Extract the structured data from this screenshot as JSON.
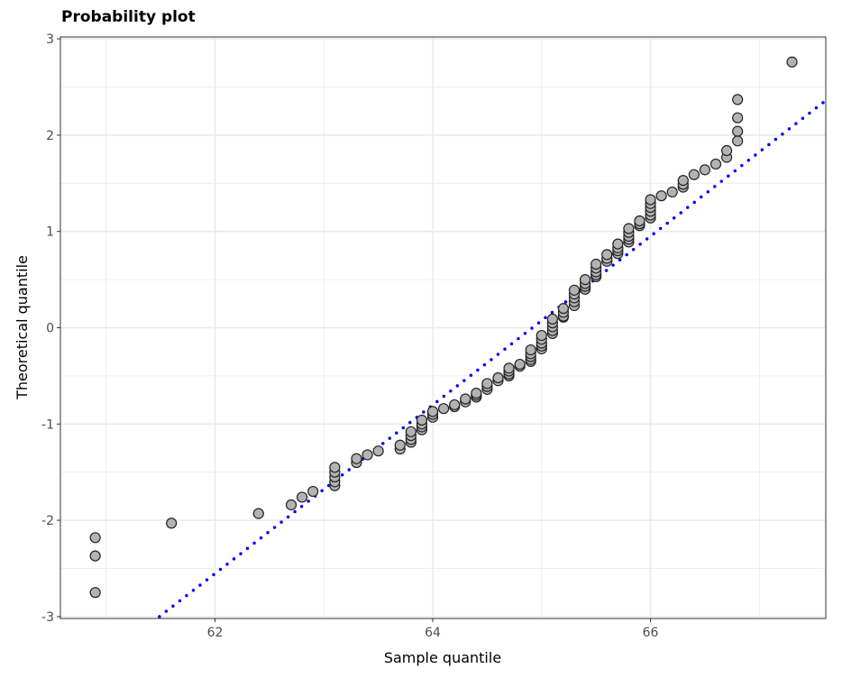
{
  "chart_data": {
    "type": "scatter",
    "title": "Probability plot",
    "xlabel": "Sample quantile",
    "ylabel": "Theoretical quantile",
    "xlim": [
      60.58,
      67.61
    ],
    "ylim": [
      -3.02,
      3.02
    ],
    "xticks": [
      62,
      64,
      66
    ],
    "xtick_labels": [
      "62",
      "64",
      "66"
    ],
    "yticks": [
      -3,
      -2,
      -1,
      0,
      1,
      2,
      3
    ],
    "ytick_labels": [
      "-3",
      "-2",
      "-1",
      "0",
      "1",
      "2",
      "3"
    ],
    "grid": true,
    "point_color": "#b3b3b3",
    "point_edge": "#222222",
    "reference_line": {
      "x": [
        61.49,
        67.61
      ],
      "y": [
        -3.0,
        2.36
      ],
      "color": "#0000ff",
      "style": "dotted"
    },
    "groups": [
      {
        "x": 60.9,
        "y": [
          -2.18,
          -2.37,
          -2.75
        ]
      },
      {
        "x": 61.6,
        "y": [
          -2.03
        ]
      },
      {
        "x": 62.4,
        "y": [
          -1.93
        ]
      },
      {
        "x": 62.7,
        "y": [
          -1.84
        ]
      },
      {
        "x": 62.8,
        "y": [
          -1.76
        ]
      },
      {
        "x": 62.9,
        "y": [
          -1.7
        ]
      },
      {
        "x": 63.1,
        "y": [
          -1.45,
          -1.5,
          -1.55,
          -1.6,
          -1.64
        ]
      },
      {
        "x": 63.3,
        "y": [
          -1.36,
          -1.4
        ]
      },
      {
        "x": 63.4,
        "y": [
          -1.32
        ]
      },
      {
        "x": 63.5,
        "y": [
          -1.28
        ]
      },
      {
        "x": 63.7,
        "y": [
          -1.22,
          -1.26
        ]
      },
      {
        "x": 63.8,
        "y": [
          -1.08,
          -1.12,
          -1.16,
          -1.19
        ]
      },
      {
        "x": 63.9,
        "y": [
          -0.96,
          -1.0,
          -1.03,
          -1.06
        ]
      },
      {
        "x": 64.0,
        "y": [
          -0.87,
          -0.9,
          -0.93
        ]
      },
      {
        "x": 64.1,
        "y": [
          -0.84
        ]
      },
      {
        "x": 64.2,
        "y": [
          -0.8,
          -0.82
        ]
      },
      {
        "x": 64.3,
        "y": [
          -0.74,
          -0.77
        ]
      },
      {
        "x": 64.4,
        "y": [
          -0.68,
          -0.7,
          -0.72
        ]
      },
      {
        "x": 64.5,
        "y": [
          -0.58,
          -0.61,
          -0.64
        ]
      },
      {
        "x": 64.6,
        "y": [
          -0.52,
          -0.55
        ]
      },
      {
        "x": 64.7,
        "y": [
          -0.42,
          -0.45,
          -0.48,
          -0.5
        ]
      },
      {
        "x": 64.8,
        "y": [
          -0.38,
          -0.4
        ]
      },
      {
        "x": 64.9,
        "y": [
          -0.23,
          -0.27,
          -0.3,
          -0.33,
          -0.35
        ]
      },
      {
        "x": 65.0,
        "y": [
          -0.08,
          -0.12,
          -0.16,
          -0.19,
          -0.22
        ]
      },
      {
        "x": 65.1,
        "y": [
          0.09,
          0.05,
          0.01,
          -0.03,
          -0.06
        ]
      },
      {
        "x": 65.2,
        "y": [
          0.2,
          0.16,
          0.12,
          0.11
        ]
      },
      {
        "x": 65.3,
        "y": [
          0.39,
          0.35,
          0.31,
          0.27,
          0.23
        ]
      },
      {
        "x": 65.4,
        "y": [
          0.5,
          0.46,
          0.43,
          0.4
        ]
      },
      {
        "x": 65.5,
        "y": [
          0.66,
          0.62,
          0.58,
          0.55,
          0.53
        ]
      },
      {
        "x": 65.6,
        "y": [
          0.76,
          0.72,
          0.69
        ]
      },
      {
        "x": 65.7,
        "y": [
          0.87,
          0.83,
          0.8,
          0.77
        ]
      },
      {
        "x": 65.8,
        "y": [
          1.03,
          0.99,
          0.95,
          0.92,
          0.89
        ]
      },
      {
        "x": 65.9,
        "y": [
          1.11,
          1.08,
          1.06
        ]
      },
      {
        "x": 66.0,
        "y": [
          1.33,
          1.29,
          1.25,
          1.21,
          1.17,
          1.14
        ]
      },
      {
        "x": 66.1,
        "y": [
          1.37
        ]
      },
      {
        "x": 66.2,
        "y": [
          1.41
        ]
      },
      {
        "x": 66.3,
        "y": [
          1.53,
          1.49,
          1.46
        ]
      },
      {
        "x": 66.4,
        "y": [
          1.59
        ]
      },
      {
        "x": 66.5,
        "y": [
          1.64
        ]
      },
      {
        "x": 66.6,
        "y": [
          1.7
        ]
      },
      {
        "x": 66.7,
        "y": [
          1.84,
          1.77
        ]
      },
      {
        "x": 66.8,
        "y": [
          2.37,
          2.18,
          2.04,
          1.94
        ]
      },
      {
        "x": 67.3,
        "y": [
          2.76
        ]
      }
    ]
  }
}
